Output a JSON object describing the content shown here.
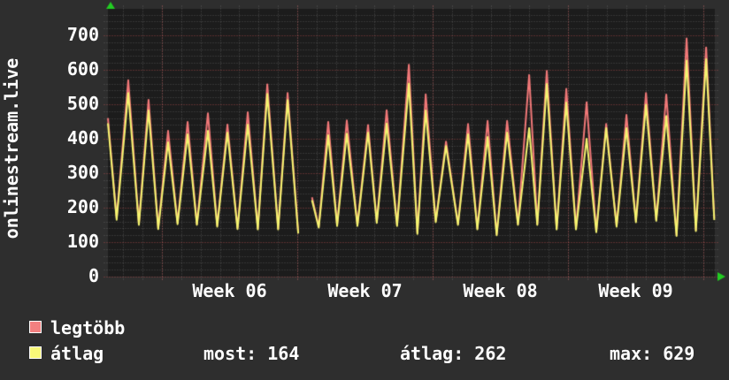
{
  "title": "onlinestream.live",
  "legend": {
    "series": [
      {
        "label": "legtöbb",
        "color": "#f28080"
      },
      {
        "label": "átlag",
        "color": "#f8f878"
      }
    ],
    "stats": [
      {
        "label": "most",
        "value": 164,
        "text": "most: 164"
      },
      {
        "label": "átlag",
        "value": 262,
        "text": "átlag: 262"
      },
      {
        "label": "max",
        "value": 629,
        "text": "max: 629"
      }
    ]
  },
  "colors": {
    "background": "#2e2e2e",
    "plot_background": "#1c1c1c",
    "grid_minor": "rgba(160,160,160,0.40)",
    "grid_major": "rgba(235,95,95,0.60)",
    "text": "#ffffff",
    "arrow_green": "#22cc22",
    "series_red": "#f17878",
    "series_yellow": "#f5f570"
  },
  "chart_data": {
    "type": "line",
    "title": "onlinestream.live",
    "ylabel": "onlinestream.live",
    "ylim": [
      0,
      777
    ],
    "y_major_ticks": [
      0,
      100,
      200,
      300,
      400,
      500,
      600,
      700
    ],
    "y_minor_step": 20,
    "x_range_days": 31.38,
    "day_grid_offset": 0.79,
    "week_gridlines_days": [
      2.79,
      9.79,
      16.79,
      23.79,
      30.79
    ],
    "x_labels": [
      {
        "label": "Week 06",
        "day": 6.29
      },
      {
        "label": "Week 07",
        "day": 13.29
      },
      {
        "label": "Week 08",
        "day": 20.29
      },
      {
        "label": "Week 09",
        "day": 27.29
      }
    ],
    "legend_position": "bottom",
    "grid": true,
    "series": [
      {
        "name": "legtöbb",
        "color": "#f17878",
        "segments": [
          [
            [
              0,
              460
            ],
            [
              0.45,
              170
            ],
            [
              1.05,
              570
            ],
            [
              1.6,
              154
            ],
            [
              2.1,
              513
            ],
            [
              2.6,
              141
            ],
            [
              3.11,
              423
            ],
            [
              3.6,
              156
            ],
            [
              4.12,
              449
            ],
            [
              4.6,
              153
            ],
            [
              5.17,
              474
            ],
            [
              5.65,
              148
            ],
            [
              6.18,
              441
            ],
            [
              6.7,
              141
            ],
            [
              7.23,
              477
            ],
            [
              7.75,
              140
            ],
            [
              8.24,
              558
            ],
            [
              8.8,
              140
            ],
            [
              9.29,
              533
            ],
            [
              9.84,
              128
            ]
          ],
          [
            [
              10.55,
              230
            ],
            [
              10.9,
              145
            ],
            [
              11.39,
              449
            ],
            [
              11.85,
              150
            ],
            [
              12.35,
              453
            ],
            [
              12.9,
              150
            ],
            [
              13.45,
              440
            ],
            [
              13.9,
              159
            ],
            [
              14.41,
              483
            ],
            [
              14.95,
              150
            ],
            [
              15.56,
              615
            ],
            [
              16.0,
              127
            ],
            [
              16.43,
              529
            ],
            [
              16.95,
              161
            ],
            [
              17.48,
              392
            ],
            [
              18.1,
              153
            ],
            [
              18.62,
              443
            ],
            [
              19.1,
              140
            ],
            [
              19.63,
              452
            ],
            [
              20.1,
              123
            ],
            [
              20.64,
              452
            ],
            [
              21.2,
              153
            ],
            [
              21.78,
              585
            ],
            [
              22.2,
              153
            ],
            [
              22.69,
              597
            ],
            [
              23.2,
              140
            ],
            [
              23.7,
              545
            ],
            [
              24.2,
              140
            ],
            [
              24.75,
              506
            ],
            [
              25.25,
              132
            ],
            [
              25.76,
              443
            ],
            [
              26.3,
              148
            ],
            [
              26.81,
              469
            ],
            [
              27.3,
              161
            ],
            [
              27.82,
              533
            ],
            [
              28.35,
              165
            ],
            [
              28.87,
              528
            ],
            [
              29.4,
              121
            ],
            [
              29.92,
              691
            ],
            [
              30.4,
              135
            ],
            [
              30.93,
              665
            ],
            [
              31.35,
              170
            ]
          ]
        ]
      },
      {
        "name": "átlag",
        "color": "#f5f570",
        "segments": [
          [
            [
              0,
              445
            ],
            [
              0.45,
              165
            ],
            [
              1.05,
              533
            ],
            [
              1.6,
              150
            ],
            [
              2.1,
              482
            ],
            [
              2.6,
              138
            ],
            [
              3.11,
              390
            ],
            [
              3.6,
              152
            ],
            [
              4.12,
              413
            ],
            [
              4.6,
              150
            ],
            [
              5.17,
              423
            ],
            [
              5.65,
              145
            ],
            [
              6.18,
              418
            ],
            [
              6.7,
              138
            ],
            [
              7.23,
              441
            ],
            [
              7.75,
              137
            ],
            [
              8.24,
              530
            ],
            [
              8.8,
              137
            ],
            [
              9.29,
              512
            ],
            [
              9.84,
              125
            ]
          ],
          [
            [
              10.55,
              222
            ],
            [
              10.9,
              142
            ],
            [
              11.39,
              410
            ],
            [
              11.85,
              147
            ],
            [
              12.35,
              415
            ],
            [
              12.9,
              147
            ],
            [
              13.45,
              418
            ],
            [
              13.9,
              156
            ],
            [
              14.41,
              444
            ],
            [
              14.95,
              147
            ],
            [
              15.56,
              560
            ],
            [
              16.0,
              124
            ],
            [
              16.43,
              482
            ],
            [
              16.95,
              158
            ],
            [
              17.48,
              379
            ],
            [
              18.1,
              150
            ],
            [
              18.62,
              413
            ],
            [
              19.1,
              137
            ],
            [
              19.63,
              405
            ],
            [
              20.1,
              120
            ],
            [
              20.64,
              418
            ],
            [
              21.2,
              150
            ],
            [
              21.78,
              431
            ],
            [
              22.2,
              150
            ],
            [
              22.69,
              559
            ],
            [
              23.2,
              137
            ],
            [
              23.7,
              505
            ],
            [
              24.2,
              137
            ],
            [
              24.75,
              400
            ],
            [
              25.25,
              129
            ],
            [
              25.76,
              431
            ],
            [
              26.3,
              145
            ],
            [
              26.81,
              431
            ],
            [
              27.3,
              158
            ],
            [
              27.82,
              499
            ],
            [
              28.35,
              162
            ],
            [
              28.87,
              466
            ],
            [
              29.4,
              118
            ],
            [
              29.92,
              627
            ],
            [
              30.4,
              132
            ],
            [
              30.93,
              631
            ],
            [
              31.35,
              164
            ]
          ]
        ]
      }
    ]
  }
}
